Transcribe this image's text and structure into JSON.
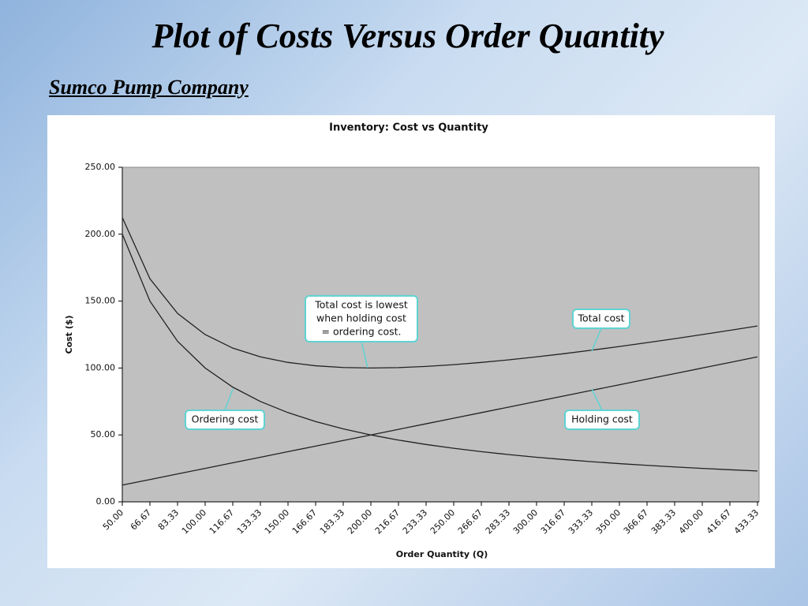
{
  "slide": {
    "title": "Plot of Costs Versus Order Quantity",
    "subtitle": "Sumco Pump Company"
  },
  "chart_data": {
    "type": "line",
    "title": "Inventory: Cost vs Quantity",
    "x_label": "Order Quantity (Q)",
    "y_label": "Cost ($)",
    "categories": [
      "50.00",
      "66.67",
      "83.33",
      "100.00",
      "116.67",
      "133.33",
      "150.00",
      "166.67",
      "183.33",
      "200.00",
      "216.67",
      "233.33",
      "250.00",
      "266.67",
      "283.33",
      "300.00",
      "316.67",
      "333.33",
      "350.00",
      "366.67",
      "383.33",
      "400.00",
      "416.67",
      "433.33"
    ],
    "series": [
      {
        "name": "Ordering cost",
        "color": "#222222",
        "values": [
          200,
          150,
          120,
          100,
          85.71,
          75,
          66.67,
          60,
          54.55,
          50,
          46.15,
          42.86,
          40,
          37.5,
          35.29,
          33.33,
          31.58,
          30,
          28.57,
          27.27,
          26.09,
          25,
          24,
          23.08
        ]
      },
      {
        "name": "Holding cost",
        "color": "#222222",
        "values": [
          12.5,
          16.67,
          20.83,
          25,
          29.17,
          33.33,
          37.5,
          41.67,
          45.83,
          50,
          54.17,
          58.33,
          62.5,
          66.67,
          70.83,
          75,
          79.17,
          83.33,
          87.5,
          91.67,
          95.83,
          100,
          104.17,
          108.33
        ]
      },
      {
        "name": "Total cost",
        "color": "#222222",
        "values": [
          212.5,
          166.67,
          140.83,
          125,
          114.88,
          108.33,
          104.17,
          101.67,
          100.38,
          100,
          100.32,
          101.19,
          102.5,
          104.17,
          106.12,
          108.33,
          110.75,
          113.33,
          116.07,
          118.94,
          121.92,
          125,
          128.17,
          131.41
        ]
      }
    ],
    "annotations": [
      {
        "lines": [
          "Total cost is lowest",
          "when holding cost",
          "= ordering cost."
        ]
      }
    ],
    "ylim": [
      0,
      250
    ],
    "yticks": [
      {
        "value": 0,
        "label": "0.00"
      },
      {
        "value": 50,
        "label": "50.00"
      },
      {
        "value": 100,
        "label": "100.00"
      },
      {
        "value": 150,
        "label": "150.00"
      },
      {
        "value": 200,
        "label": "200.00"
      },
      {
        "value": 250,
        "label": "250.00"
      }
    ],
    "plot_color": "#c0c0c0"
  }
}
